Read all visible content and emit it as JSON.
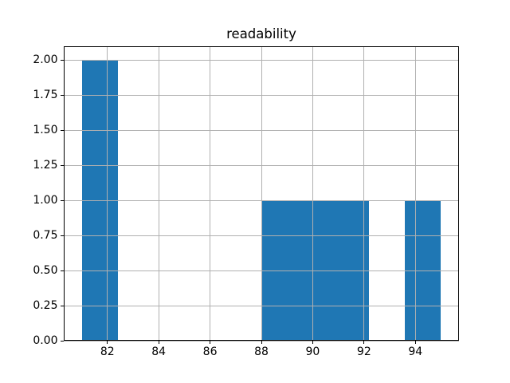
{
  "figure": {
    "background": "#ffffff"
  },
  "chart_data": {
    "type": "bar",
    "subtype": "histogram",
    "title": "readability",
    "bin_edges": [
      81.0,
      82.4,
      83.8,
      85.2,
      86.6,
      88.0,
      89.4,
      90.8,
      92.2,
      93.6,
      95.0
    ],
    "counts": [
      2,
      0,
      0,
      0,
      0,
      1,
      1,
      1,
      0,
      1
    ],
    "xticks": [
      {
        "value": 82,
        "label": "82"
      },
      {
        "value": 84,
        "label": "84"
      },
      {
        "value": 86,
        "label": "86"
      },
      {
        "value": 88,
        "label": "88"
      },
      {
        "value": 90,
        "label": "90"
      },
      {
        "value": 92,
        "label": "92"
      },
      {
        "value": 94,
        "label": "94"
      }
    ],
    "yticks": [
      {
        "value": 0.0,
        "label": "0.00"
      },
      {
        "value": 0.25,
        "label": "0.25"
      },
      {
        "value": 0.5,
        "label": "0.50"
      },
      {
        "value": 0.75,
        "label": "0.75"
      },
      {
        "value": 1.0,
        "label": "1.00"
      },
      {
        "value": 1.25,
        "label": "1.25"
      },
      {
        "value": 1.5,
        "label": "1.50"
      },
      {
        "value": 1.75,
        "label": "1.75"
      },
      {
        "value": 2.0,
        "label": "2.00"
      }
    ],
    "xlim": [
      80.3,
      95.7
    ],
    "ylim": [
      0,
      2.1
    ],
    "xlabel": "",
    "ylabel": "",
    "grid": true,
    "grid_above_bars": true,
    "legend": null,
    "bar_color": "#1f77b4",
    "grid_color": "#b0b0b0",
    "axis_color": "#000000",
    "text_color": "#000000"
  }
}
